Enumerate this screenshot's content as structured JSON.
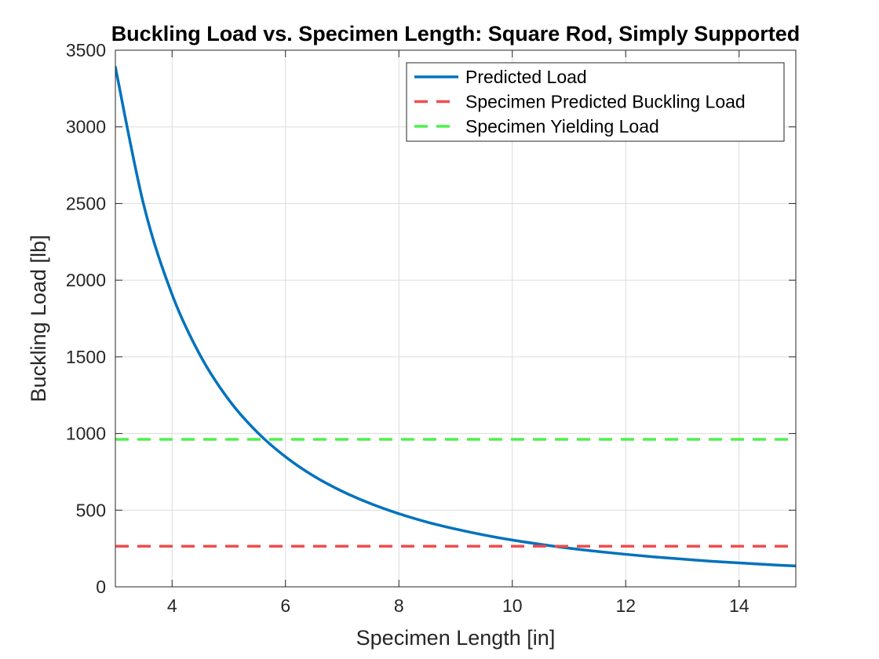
{
  "chart_data": {
    "type": "line",
    "title": "Buckling Load vs. Specimen Length: Square Rod, Simply Supported",
    "xlabel": "Specimen Length [in]",
    "ylabel": "Buckling Load [lb]",
    "xlim": [
      3,
      15
    ],
    "ylim": [
      0,
      3500
    ],
    "xticks": [
      4,
      6,
      8,
      10,
      12,
      14
    ],
    "xtick_labels": [
      "4",
      "6",
      "8",
      "10",
      "12",
      "14"
    ],
    "yticks": [
      0,
      500,
      1000,
      1500,
      2000,
      2500,
      3000,
      3500
    ],
    "ytick_labels": [
      "0",
      "500",
      "1000",
      "1500",
      "2000",
      "2500",
      "3000",
      "3500"
    ],
    "grid": true,
    "legend_position": "top-right",
    "series": [
      {
        "name": "Predicted Load",
        "style": "solid",
        "color": "#0072BD",
        "x": [
          3,
          3.5,
          4,
          4.5,
          5,
          5.5,
          6,
          6.5,
          7,
          7.5,
          8,
          8.5,
          9,
          9.5,
          10,
          10.5,
          11,
          11.5,
          12,
          12.5,
          13,
          13.5,
          14,
          14.5,
          15
        ],
        "y": [
          3390,
          2491,
          1907,
          1507,
          1220,
          1009,
          848,
          722,
          623,
          543,
          477,
          422,
          377,
          338,
          305,
          277,
          252,
          231,
          212,
          195,
          181,
          167,
          156,
          145,
          136
        ]
      },
      {
        "name": "Specimen Predicted Buckling Load",
        "style": "dashed",
        "color": "#F04D4D",
        "x": [
          3,
          15
        ],
        "y": [
          265,
          265
        ]
      },
      {
        "name": "Specimen Yielding Load",
        "style": "dashed",
        "color": "#4DF04D",
        "x": [
          3,
          15
        ],
        "y": [
          962,
          962
        ]
      }
    ]
  }
}
